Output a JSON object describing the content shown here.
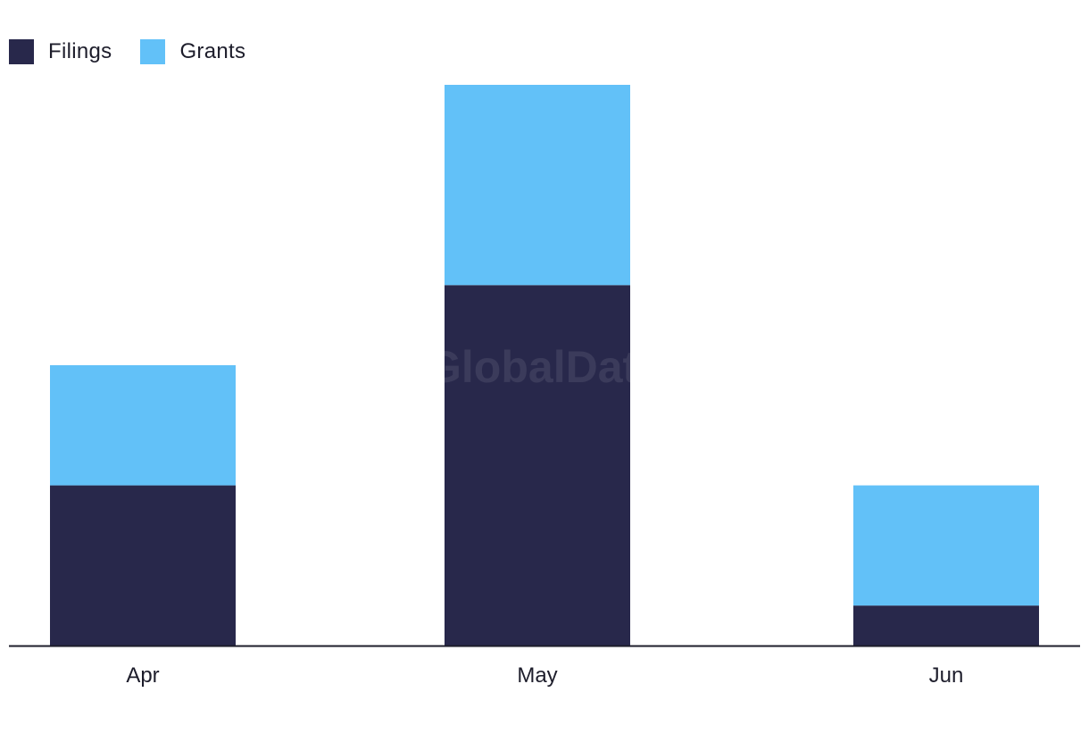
{
  "chart_data": {
    "type": "bar",
    "stacked": true,
    "categories": [
      "Apr",
      "May",
      "Jun"
    ],
    "series": [
      {
        "name": "Filings",
        "color": "#28284b",
        "values": [
          4,
          9,
          1
        ]
      },
      {
        "name": "Grants",
        "color": "#62c1f8",
        "values": [
          3,
          5,
          3
        ]
      }
    ],
    "ylim": [
      0,
      14
    ],
    "grid": false,
    "legend_position": "top-left",
    "watermark": "GlobalData"
  }
}
